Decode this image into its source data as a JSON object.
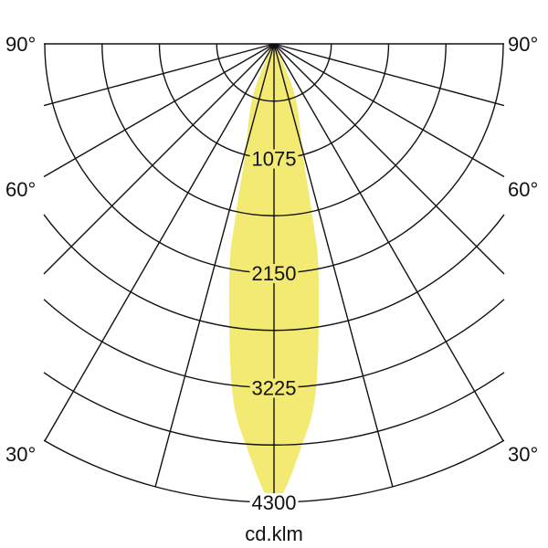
{
  "chart_data": {
    "type": "polar",
    "unit_label": "cd.klm",
    "radial_max": 4300,
    "ring_step": 537.5,
    "radial_tick_labels": [
      "1075",
      "2150",
      "3225",
      "4300"
    ],
    "radial_tick_values": [
      1075,
      2150,
      3225,
      4300
    ],
    "angle_grid_step_deg": 15,
    "angle_labels_left": [
      "90°",
      "60°",
      "30°"
    ],
    "angle_labels_right": [
      "90°",
      "60°",
      "30°"
    ],
    "angle_label_values": [
      90,
      60,
      30
    ],
    "grid": true,
    "symmetric": true,
    "series": [
      {
        "angles_deg": [
          0,
          4,
          7,
          11,
          12.5,
          14.5,
          21.5,
          28,
          35
        ],
        "values": [
          4300,
          3770,
          3245,
          2190,
          1680,
          1090,
          560,
          110,
          0
        ]
      }
    ],
    "colors": {
      "beam": "#f2ea72",
      "grid": "#111111"
    }
  }
}
